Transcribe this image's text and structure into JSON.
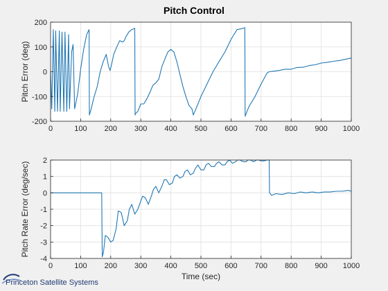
{
  "figure_title": "Pitch Control",
  "branding": {
    "logo_text": "Princeton Satellite Systems"
  },
  "colors": {
    "line": "#1f77b4",
    "grid": "#dfdfdf",
    "axes_bg": "#ffffff",
    "figure_bg": "#f0f0f0",
    "logo": "#1f3b73"
  },
  "chart_data": [
    {
      "type": "line",
      "title": "Pitch Control",
      "xlabel": "",
      "ylabel": "Pitch Error (deg)",
      "xlim": [
        0,
        1000
      ],
      "ylim": [
        -200,
        200
      ],
      "xticks": [
        0,
        100,
        200,
        300,
        400,
        500,
        600,
        700,
        800,
        900,
        1000
      ],
      "yticks": [
        -200,
        -100,
        0,
        100,
        200
      ],
      "grid": true,
      "series": [
        {
          "x": [
            0,
            4,
            9,
            14,
            17,
            23,
            29,
            32,
            38,
            44,
            48,
            54,
            60,
            63,
            70,
            75,
            80,
            90,
            100,
            110,
            120,
            128,
            129,
            135,
            145,
            155,
            165,
            175,
            185,
            193,
            198,
            203,
            210,
            220,
            230,
            240,
            245,
            250,
            260,
            270,
            280,
            281,
            282,
            290,
            300,
            310,
            320,
            330,
            340,
            350,
            360,
            370,
            380,
            390,
            400,
            410,
            420,
            430,
            440,
            450,
            460,
            470,
            475,
            476,
            480,
            490,
            500,
            520,
            540,
            560,
            580,
            600,
            620,
            640,
            646,
            647,
            660,
            680,
            700,
            720,
            727,
            740,
            760,
            780,
            800,
            820,
            840,
            860,
            880,
            900,
            920,
            940,
            960,
            980,
            1000
          ],
          "y": [
            0,
            -150,
            170,
            -160,
            165,
            -160,
            165,
            -160,
            160,
            -160,
            160,
            -160,
            150,
            -150,
            80,
            110,
            -150,
            -90,
            10,
            90,
            150,
            170,
            -175,
            -150,
            -100,
            -60,
            0,
            40,
            70,
            20,
            5,
            30,
            70,
            100,
            125,
            120,
            125,
            140,
            160,
            170,
            175,
            -175,
            -170,
            -160,
            -130,
            -130,
            -110,
            -85,
            -55,
            -45,
            -30,
            20,
            50,
            80,
            90,
            80,
            40,
            -10,
            -60,
            -100,
            -135,
            -150,
            -175,
            -170,
            -160,
            -130,
            -100,
            -50,
            0,
            40,
            80,
            130,
            170,
            175,
            178,
            -180,
            -140,
            -100,
            -50,
            -5,
            0,
            2,
            5,
            10,
            10,
            17,
            18,
            25,
            28,
            35,
            38,
            42,
            45,
            50,
            55
          ]
        }
      ]
    },
    {
      "type": "line",
      "title": "",
      "xlabel": "Time (sec)",
      "ylabel": "Pitch Rate Error (deg/sec)",
      "xlim": [
        0,
        1000
      ],
      "ylim": [
        -4,
        2
      ],
      "xticks": [
        0,
        100,
        200,
        300,
        400,
        500,
        600,
        700,
        800,
        900,
        1000
      ],
      "yticks": [
        -4,
        -3,
        -2,
        -1,
        0,
        1,
        2
      ],
      "grid": true,
      "series": [
        {
          "x": [
            0,
            170,
            171,
            172,
            176,
            182,
            190,
            200,
            208,
            218,
            225,
            235,
            245,
            255,
            262,
            270,
            280,
            290,
            300,
            306,
            315,
            325,
            335,
            342,
            350,
            360,
            370,
            378,
            385,
            395,
            405,
            412,
            420,
            430,
            440,
            447,
            455,
            465,
            475,
            482,
            490,
            500,
            510,
            517,
            525,
            535,
            545,
            552,
            560,
            570,
            580,
            587,
            595,
            605,
            615,
            622,
            630,
            640,
            650,
            657,
            665,
            675,
            685,
            692,
            700,
            710,
            720,
            727,
            728,
            735,
            750,
            770,
            790,
            810,
            830,
            850,
            870,
            890,
            910,
            930,
            950,
            970,
            990,
            1000
          ],
          "y": [
            0,
            0,
            -2.1,
            -3.9,
            -3.6,
            -2.6,
            -2.7,
            -3.0,
            -2.9,
            -2.2,
            -1.1,
            -1.2,
            -2.0,
            -1.7,
            -1.0,
            -0.7,
            -1.3,
            -1.0,
            -0.5,
            -0.2,
            -0.3,
            -0.7,
            -0.2,
            0.2,
            0.4,
            0.0,
            0.4,
            0.8,
            0.8,
            0.5,
            0.6,
            1.0,
            1.1,
            0.9,
            1.0,
            1.3,
            1.4,
            1.1,
            1.2,
            1.5,
            1.7,
            1.4,
            1.4,
            1.7,
            1.8,
            1.6,
            1.6,
            1.8,
            1.9,
            1.7,
            1.7,
            1.9,
            2.0,
            1.8,
            1.9,
            2.0,
            2.0,
            1.9,
            1.9,
            2.0,
            2.0,
            1.9,
            2.0,
            2.0,
            1.95,
            1.95,
            2.0,
            2.0,
            0.0,
            -0.15,
            -0.05,
            -0.1,
            0.0,
            -0.05,
            0.05,
            0.0,
            0.05,
            0.0,
            0.05,
            0.05,
            0.1,
            0.1,
            0.15,
            0.1
          ]
        }
      ]
    }
  ]
}
